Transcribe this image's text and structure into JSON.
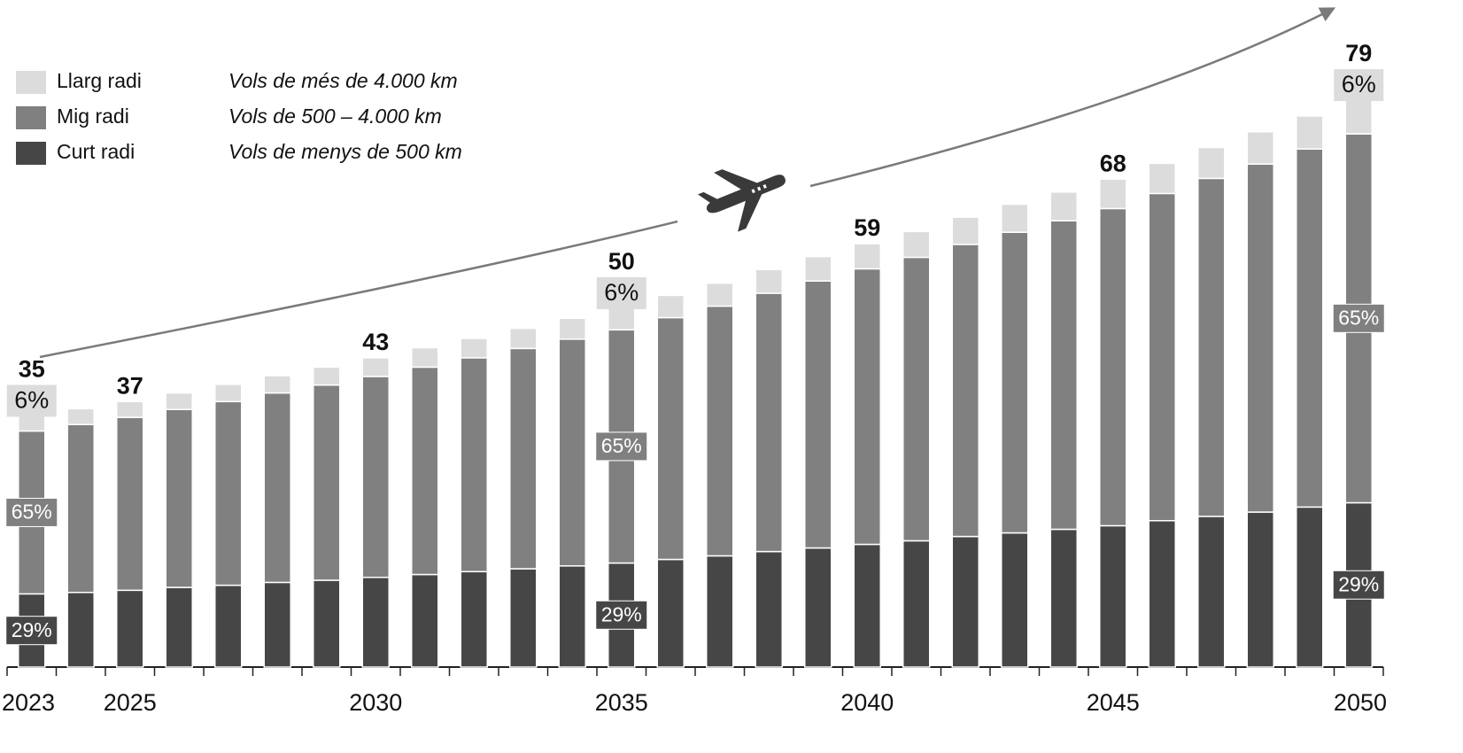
{
  "chart_data": {
    "type": "stacked_bar",
    "categories": [
      "2023",
      null,
      "2025",
      null,
      null,
      null,
      null,
      "2030",
      null,
      null,
      null,
      null,
      "2035",
      null,
      null,
      null,
      null,
      "2040",
      null,
      null,
      null,
      null,
      "2045",
      null,
      null,
      null,
      null,
      "2050"
    ],
    "totals": [
      35,
      null,
      37,
      null,
      null,
      null,
      null,
      43,
      null,
      null,
      null,
      null,
      50,
      null,
      null,
      null,
      null,
      59,
      null,
      null,
      null,
      null,
      68,
      null,
      null,
      null,
      null,
      79
    ],
    "series": [
      {
        "name": "Curt radi",
        "description": "Vols de menys de 500 km",
        "color": "#464646",
        "values": [
          10.2,
          10.4,
          10.7,
          11.1,
          11.4,
          11.8,
          12.1,
          12.5,
          12.9,
          13.3,
          13.7,
          14.1,
          14.5,
          15.0,
          15.5,
          16.1,
          16.6,
          17.1,
          17.6,
          18.2,
          18.7,
          19.2,
          19.7,
          20.4,
          21.0,
          21.6,
          22.3,
          22.9
        ],
        "share_labels": [
          {
            "value": 29,
            "label": "29%"
          },
          null,
          null,
          null,
          null,
          null,
          null,
          null,
          null,
          null,
          null,
          null,
          {
            "value": 29,
            "label": "29%"
          },
          null,
          null,
          null,
          null,
          null,
          null,
          null,
          null,
          null,
          null,
          null,
          null,
          null,
          null,
          {
            "value": 29,
            "label": "29%"
          }
        ]
      },
      {
        "name": "Mig radi",
        "description": "Vols de 500 – 4.000 km",
        "color": "#808080",
        "values": [
          22.7,
          23.4,
          24.1,
          24.8,
          25.6,
          26.4,
          27.2,
          28.0,
          28.9,
          29.8,
          30.7,
          31.6,
          32.5,
          33.7,
          34.8,
          36.0,
          37.2,
          38.4,
          39.5,
          40.7,
          41.9,
          43.0,
          44.2,
          45.6,
          47.1,
          48.5,
          49.9,
          51.4
        ],
        "share_labels": [
          {
            "value": 65,
            "label": "65%"
          },
          null,
          null,
          null,
          null,
          null,
          null,
          null,
          null,
          null,
          null,
          null,
          {
            "value": 65,
            "label": "65%"
          },
          null,
          null,
          null,
          null,
          null,
          null,
          null,
          null,
          null,
          null,
          null,
          null,
          null,
          null,
          {
            "value": 65,
            "label": "65%"
          }
        ]
      },
      {
        "name": "Llarg radi",
        "description": "Vols de més de 4.000 km",
        "color": "#dcdcdc",
        "values": [
          2.1,
          2.2,
          2.2,
          2.3,
          2.4,
          2.4,
          2.5,
          2.6,
          2.7,
          2.7,
          2.8,
          2.9,
          3.0,
          3.1,
          3.2,
          3.3,
          3.4,
          3.5,
          3.6,
          3.8,
          3.9,
          4.0,
          4.1,
          4.2,
          4.3,
          4.5,
          4.6,
          4.7
        ],
        "share_labels": [
          {
            "value": 6,
            "label": "6%"
          },
          null,
          null,
          null,
          null,
          null,
          null,
          null,
          null,
          null,
          null,
          null,
          {
            "value": 6,
            "label": "6%"
          },
          null,
          null,
          null,
          null,
          null,
          null,
          null,
          null,
          null,
          null,
          null,
          null,
          null,
          null,
          {
            "value": 6,
            "label": "6%"
          }
        ]
      }
    ]
  }
}
